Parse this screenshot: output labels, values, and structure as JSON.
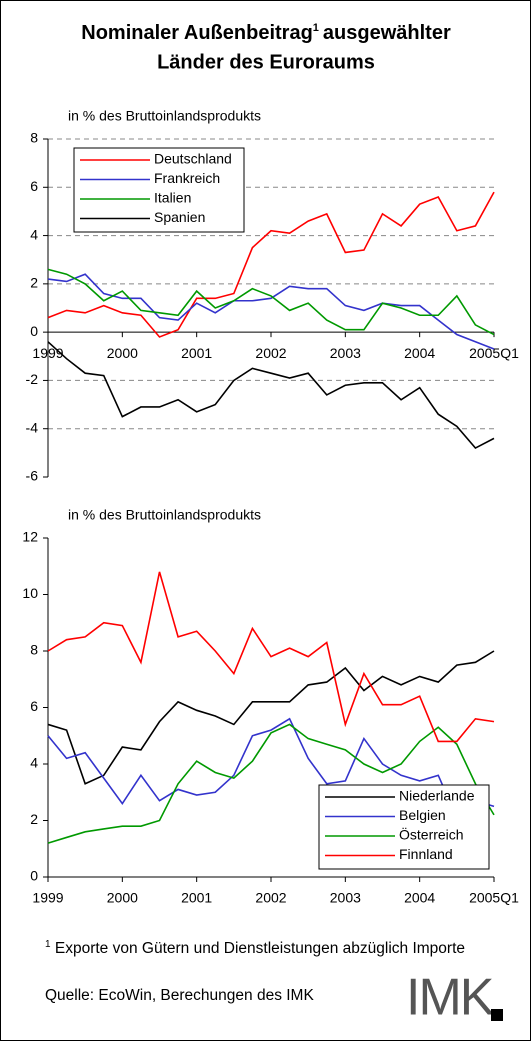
{
  "title": {
    "part1": "Nominaler Außenbeitrag",
    "sup": "1",
    "part2": "ausgewählter",
    "line2": "Länder des Euroraums"
  },
  "footnote": {
    "mark": "1",
    "text": "Exporte von Gütern und Dienstleistungen abzüglich Importe"
  },
  "source": "Quelle: EcoWin, Berechungen des IMK",
  "logo": "IMK",
  "chart_data": [
    {
      "type": "line",
      "ylabel": "in % des Bruttoinlandsprodukts",
      "categories": [
        "1999",
        null,
        null,
        null,
        "2000",
        null,
        null,
        null,
        "2001",
        null,
        null,
        null,
        "2002",
        null,
        null,
        null,
        "2003",
        null,
        null,
        null,
        "2004",
        null,
        null,
        null,
        "2005Q1"
      ],
      "ylim": [
        -6,
        8
      ],
      "yticks": [
        -6,
        -4,
        -2,
        0,
        2,
        4,
        6,
        8
      ],
      "grid": true,
      "legend": "upper left",
      "series": [
        {
          "name": "Deutschland",
          "color": "#ff0000",
          "values": [
            0.6,
            0.9,
            0.8,
            1.1,
            0.8,
            0.7,
            -0.2,
            0.1,
            1.4,
            1.4,
            1.6,
            3.5,
            4.2,
            4.1,
            4.6,
            4.9,
            3.3,
            3.4,
            4.9,
            4.4,
            5.3,
            5.6,
            4.2,
            4.4,
            5.8
          ]
        },
        {
          "name": "Frankreich",
          "color": "#3333cc",
          "values": [
            2.2,
            2.1,
            2.4,
            1.6,
            1.4,
            1.4,
            0.6,
            0.5,
            1.2,
            0.8,
            1.3,
            1.3,
            1.4,
            1.9,
            1.8,
            1.8,
            1.1,
            0.9,
            1.2,
            1.1,
            1.1,
            0.5,
            -0.1,
            -0.4,
            -0.7
          ]
        },
        {
          "name": "Italien",
          "color": "#009900",
          "values": [
            2.6,
            2.4,
            2.0,
            1.3,
            1.7,
            0.9,
            0.8,
            0.7,
            1.7,
            1.0,
            1.3,
            1.8,
            1.5,
            0.9,
            1.2,
            0.5,
            0.1,
            0.1,
            1.2,
            1.0,
            0.7,
            0.7,
            1.5,
            0.3,
            -0.1
          ]
        },
        {
          "name": "Spanien",
          "color": "#000000",
          "values": [
            -0.4,
            -1.1,
            -1.7,
            -1.8,
            -3.5,
            -3.1,
            -3.1,
            -2.8,
            -3.3,
            -3.0,
            -2.0,
            -1.5,
            -1.7,
            -1.9,
            -1.7,
            -2.6,
            -2.2,
            -2.1,
            -2.1,
            -2.8,
            -2.3,
            -3.4,
            -3.9,
            -4.8,
            -4.4
          ]
        }
      ]
    },
    {
      "type": "line",
      "ylabel": "in % des Bruttoinlandsprodukts",
      "categories": [
        "1999",
        null,
        null,
        null,
        "2000",
        null,
        null,
        null,
        "2001",
        null,
        null,
        null,
        "2002",
        null,
        null,
        null,
        "2003",
        null,
        null,
        null,
        "2004",
        null,
        null,
        null,
        "2005Q1"
      ],
      "ylim": [
        0,
        12
      ],
      "yticks": [
        0,
        2,
        4,
        6,
        8,
        10,
        12
      ],
      "grid": false,
      "legend": "lower right",
      "series": [
        {
          "name": "Niederlande",
          "color": "#000000",
          "values": [
            5.4,
            5.2,
            3.3,
            3.6,
            4.6,
            4.5,
            5.5,
            6.2,
            5.9,
            5.7,
            5.4,
            6.2,
            6.2,
            6.2,
            6.8,
            6.9,
            7.4,
            6.6,
            7.1,
            6.8,
            7.1,
            6.9,
            7.5,
            7.6,
            8.0
          ]
        },
        {
          "name": "Belgien",
          "color": "#3333cc",
          "values": [
            5.0,
            4.2,
            4.4,
            3.5,
            2.6,
            3.6,
            2.7,
            3.1,
            2.9,
            3.0,
            3.6,
            5.0,
            5.2,
            5.6,
            4.2,
            3.3,
            3.4,
            4.9,
            4.0,
            3.6,
            3.4,
            3.6,
            2.1,
            2.7,
            2.5
          ]
        },
        {
          "name": "Österreich",
          "color": "#009900",
          "values": [
            1.2,
            1.4,
            1.6,
            1.7,
            1.8,
            1.8,
            2.0,
            3.3,
            4.1,
            3.7,
            3.5,
            4.1,
            5.1,
            5.4,
            4.9,
            4.7,
            4.5,
            4.0,
            3.7,
            4.0,
            4.8,
            5.3,
            4.7,
            3.3,
            2.2
          ]
        },
        {
          "name": "Finnland",
          "color": "#ff0000",
          "values": [
            8.0,
            8.4,
            8.5,
            9.0,
            8.9,
            7.6,
            10.8,
            8.5,
            8.7,
            8.0,
            7.2,
            8.8,
            7.8,
            8.1,
            7.8,
            8.3,
            5.4,
            7.2,
            6.1,
            6.1,
            6.4,
            4.8,
            4.8,
            5.6,
            5.5
          ]
        }
      ]
    }
  ]
}
